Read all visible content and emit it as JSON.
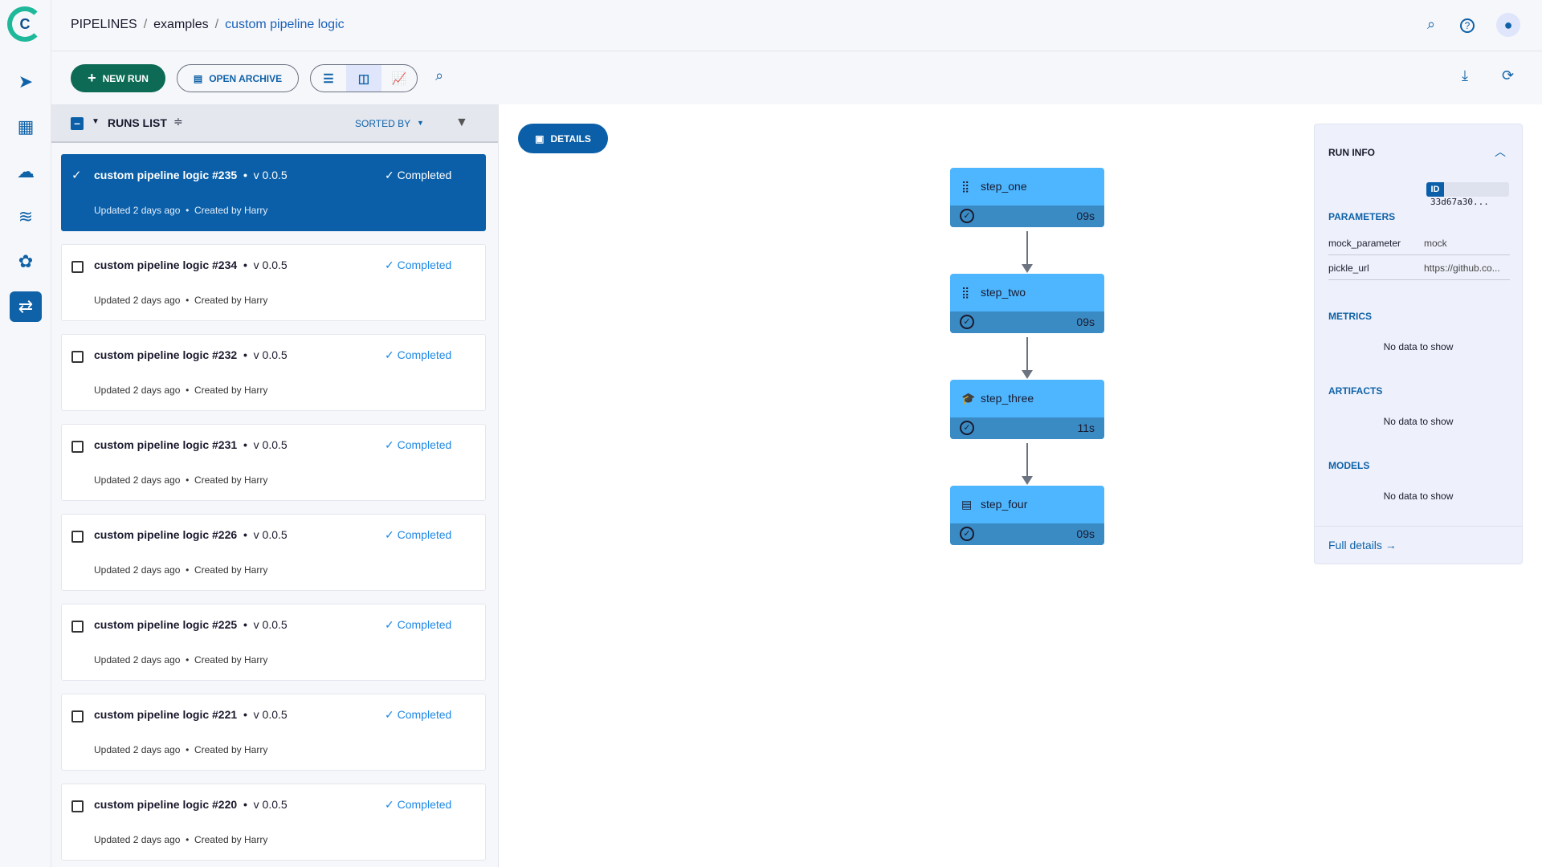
{
  "app": {
    "logo_letter": "C"
  },
  "sidebar": {
    "items": [
      {
        "icon": "pipelines-arrow-icon"
      },
      {
        "icon": "datasets-icon"
      },
      {
        "icon": "cloud-agents-icon"
      },
      {
        "icon": "layers-icon"
      },
      {
        "icon": "brain-icon"
      },
      {
        "icon": "pipeline-runs-icon",
        "active": true
      }
    ]
  },
  "breadcrumb": [
    "PIPELINES",
    "examples",
    "custom pipeline logic"
  ],
  "toolbar": {
    "new_run": "NEW RUN",
    "open_archive": "OPEN ARCHIVE"
  },
  "runs_list": {
    "title": "RUNS LIST",
    "sorted_by": "SORTED BY",
    "runs": [
      {
        "name": "custom pipeline logic #235",
        "version": "v 0.0.5",
        "status": "Completed",
        "updated": "Updated 2 days ago",
        "created": "Created by Harry",
        "selected": true
      },
      {
        "name": "custom pipeline logic #234",
        "version": "v 0.0.5",
        "status": "Completed",
        "updated": "Updated 2 days ago",
        "created": "Created by Harry"
      },
      {
        "name": "custom pipeline logic #232",
        "version": "v 0.0.5",
        "status": "Completed",
        "updated": "Updated 2 days ago",
        "created": "Created by Harry"
      },
      {
        "name": "custom pipeline logic #231",
        "version": "v 0.0.5",
        "status": "Completed",
        "updated": "Updated 2 days ago",
        "created": "Created by Harry"
      },
      {
        "name": "custom pipeline logic #226",
        "version": "v 0.0.5",
        "status": "Completed",
        "updated": "Updated 2 days ago",
        "created": "Created by Harry"
      },
      {
        "name": "custom pipeline logic #225",
        "version": "v 0.0.5",
        "status": "Completed",
        "updated": "Updated 2 days ago",
        "created": "Created by Harry"
      },
      {
        "name": "custom pipeline logic #221",
        "version": "v 0.0.5",
        "status": "Completed",
        "updated": "Updated 2 days ago",
        "created": "Created by Harry"
      },
      {
        "name": "custom pipeline logic #220",
        "version": "v 0.0.5",
        "status": "Completed",
        "updated": "Updated 2 days ago",
        "created": "Created by Harry"
      }
    ]
  },
  "details_button": "DETAILS",
  "steps": [
    {
      "name": "step_one",
      "duration": "09s",
      "icon": "dataset-icon"
    },
    {
      "name": "step_two",
      "duration": "09s",
      "icon": "dataset-icon"
    },
    {
      "name": "step_three",
      "duration": "11s",
      "icon": "training-icon"
    },
    {
      "name": "step_four",
      "duration": "09s",
      "icon": "document-icon"
    }
  ],
  "run_info": {
    "title": "RUN INFO",
    "id_label": "ID",
    "id_value": "33d67a30...",
    "parameters_title": "PARAMETERS",
    "parameters": [
      {
        "key": "mock_parameter",
        "value": "mock"
      },
      {
        "key": "pickle_url",
        "value": "https://github.co..."
      }
    ],
    "metrics_title": "METRICS",
    "metrics_empty": "No data to show",
    "artifacts_title": "ARTIFACTS",
    "artifacts_empty": "No data to show",
    "models_title": "MODELS",
    "models_empty": "No data to show",
    "full_details": "Full details →"
  },
  "colors": {
    "primary": "#0a5fa8",
    "new_run": "#0c6a55",
    "node": "#4db6ff",
    "node_band": "#3a8bc4",
    "completed": "#1e88e5"
  }
}
